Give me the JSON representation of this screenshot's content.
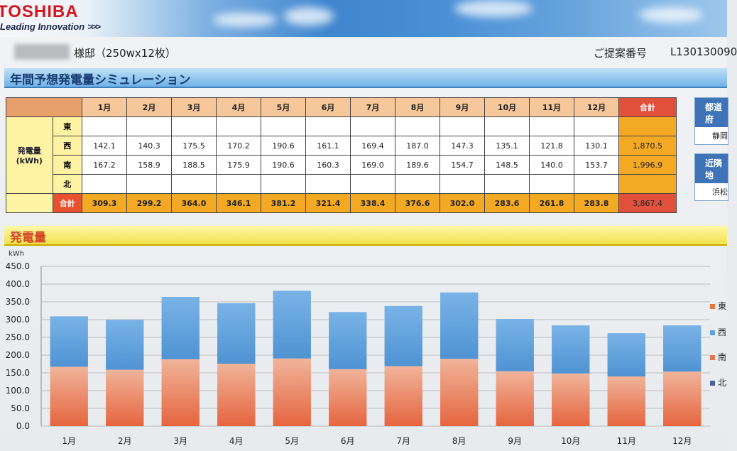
{
  "header": {
    "brand": "TOSHIBA",
    "tagline": "Leading Innovation",
    "tagline_arrows": ">>>",
    "customer": "様邸（250wx12枚）",
    "proposal_label": "ご提案番号",
    "proposal_no": "L130130090"
  },
  "section1_title": "年間予想発電量シミュレーション",
  "section2_title": "発電量",
  "table": {
    "months": [
      "1月",
      "2月",
      "3月",
      "4月",
      "5月",
      "6月",
      "7月",
      "8月",
      "9月",
      "10月",
      "11月",
      "12月"
    ],
    "total_header": "合計",
    "row_label": "発電量",
    "row_unit": "(kWh)",
    "rows": [
      {
        "dir": "東",
        "values": [
          "",
          "",
          "",
          "",
          "",
          "",
          "",
          "",
          "",
          "",
          "",
          ""
        ],
        "total": ""
      },
      {
        "dir": "西",
        "values": [
          "142.1",
          "140.3",
          "175.5",
          "170.2",
          "190.6",
          "161.1",
          "169.4",
          "187.0",
          "147.3",
          "135.1",
          "121.8",
          "130.1"
        ],
        "total": "1,870.5"
      },
      {
        "dir": "南",
        "values": [
          "167.2",
          "158.9",
          "188.5",
          "175.9",
          "190.6",
          "160.3",
          "169.0",
          "189.6",
          "154.7",
          "148.5",
          "140.0",
          "153.7"
        ],
        "total": "1,996.9"
      },
      {
        "dir": "北",
        "values": [
          "",
          "",
          "",
          "",
          "",
          "",
          "",
          "",
          "",
          "",
          "",
          ""
        ],
        "total": ""
      }
    ],
    "sum_label": "合計",
    "sums": [
      "309.3",
      "299.2",
      "364.0",
      "346.1",
      "381.2",
      "321.4",
      "338.4",
      "376.6",
      "302.0",
      "283.6",
      "261.8",
      "283.8"
    ],
    "grand_total": "3,867.4"
  },
  "side": {
    "box1_title": "都道府",
    "box1_value": "静岡",
    "box2_title": "近隣地",
    "box2_value": "浜松"
  },
  "colors": {
    "south": "#e8764f",
    "west": "#5ea2dc",
    "east": "#e8763a",
    "north": "#4a5fa8"
  },
  "chart_data": {
    "type": "bar",
    "stacked": true,
    "ylabel": "kWh",
    "ylim": [
      0,
      450
    ],
    "yticks": [
      "0.0",
      "50.0",
      "100.0",
      "150.0",
      "200.0",
      "250.0",
      "300.0",
      "350.0",
      "400.0",
      "450.0"
    ],
    "grid": true,
    "legend_position": "right",
    "categories": [
      "1月",
      "2月",
      "3月",
      "4月",
      "5月",
      "6月",
      "7月",
      "8月",
      "9月",
      "10月",
      "11月",
      "12月"
    ],
    "series": [
      {
        "name": "東",
        "values": [
          0,
          0,
          0,
          0,
          0,
          0,
          0,
          0,
          0,
          0,
          0,
          0
        ]
      },
      {
        "name": "西",
        "values": [
          142.1,
          140.3,
          175.5,
          170.2,
          190.6,
          161.1,
          169.4,
          187.0,
          147.3,
          135.1,
          121.8,
          130.1
        ]
      },
      {
        "name": "南",
        "values": [
          167.2,
          158.9,
          188.5,
          175.9,
          190.6,
          160.3,
          169.0,
          189.6,
          154.7,
          148.5,
          140.0,
          153.7
        ]
      },
      {
        "name": "北",
        "values": [
          0,
          0,
          0,
          0,
          0,
          0,
          0,
          0,
          0,
          0,
          0,
          0
        ]
      }
    ]
  }
}
